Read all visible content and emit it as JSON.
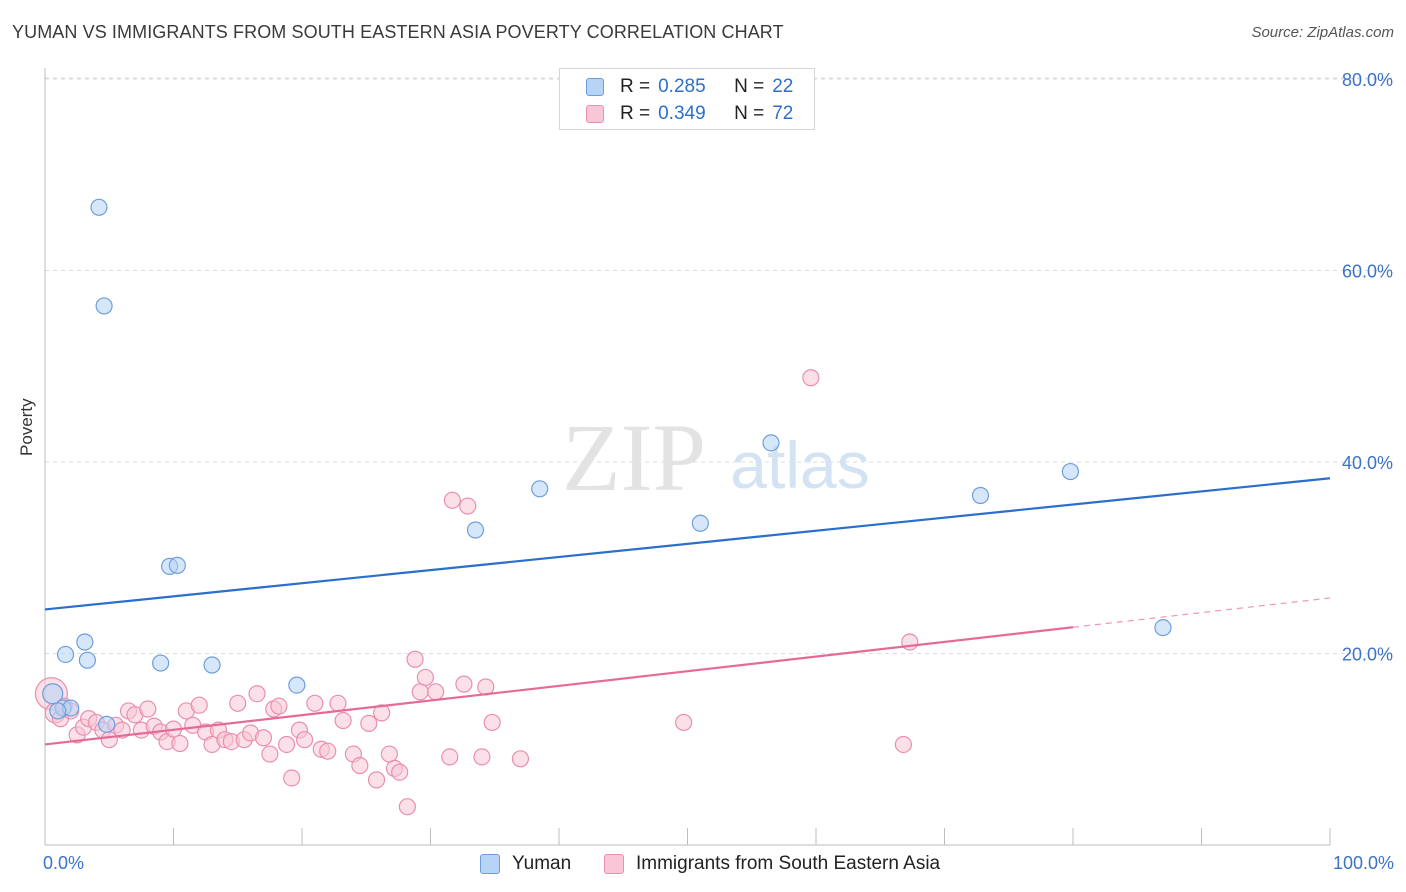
{
  "title": "YUMAN VS IMMIGRANTS FROM SOUTH EASTERN ASIA POVERTY CORRELATION CHART",
  "source": "Source: ZipAtlas.com",
  "watermark": {
    "zip": "ZIP",
    "atlas": "atlas"
  },
  "legend": {
    "r_label": "R =",
    "n_label": "N =",
    "rows": [
      {
        "r": "0.285",
        "n": "22"
      },
      {
        "r": "0.349",
        "n": "72"
      }
    ]
  },
  "colors": {
    "yuman_fill": "#b7d3f5",
    "yuman_stroke": "#6e9fdc",
    "yuman_line": "#2a6fcc",
    "sea_fill": "#f8c6d6",
    "sea_stroke": "#ea8fae",
    "sea_line": "#e56b95",
    "tick_label": "#3a73c8",
    "grid": "#dcdcdc"
  },
  "chart_data": {
    "type": "scatter",
    "title": "YUMAN VS IMMIGRANTS FROM SOUTH EASTERN ASIA POVERTY CORRELATION CHART",
    "xlabel": "",
    "ylabel": "Poverty",
    "xlim": [
      0,
      100
    ],
    "ylim": [
      0,
      80
    ],
    "x_tick_labels": [
      "0.0%",
      "100.0%"
    ],
    "y_ticks": [
      20,
      40,
      60,
      80
    ],
    "y_tick_labels": [
      "20.0%",
      "40.0%",
      "60.0%",
      "80.0%"
    ],
    "grid": true,
    "series": [
      {
        "name": "Yuman",
        "R": 0.285,
        "N": 22,
        "trend": {
          "x": [
            0,
            100
          ],
          "y": [
            24.6,
            38.3
          ],
          "dashed_from": null
        },
        "points": [
          [
            0.6,
            15.8
          ],
          [
            1.4,
            14.3
          ],
          [
            1.6,
            19.9
          ],
          [
            2.0,
            14.3
          ],
          [
            3.1,
            21.2
          ],
          [
            3.3,
            19.3
          ],
          [
            4.2,
            66.6
          ],
          [
            4.6,
            56.3
          ],
          [
            4.8,
            12.6
          ],
          [
            9.0,
            19.0
          ],
          [
            9.7,
            29.1
          ],
          [
            10.3,
            29.2
          ],
          [
            13.0,
            18.8
          ],
          [
            19.6,
            16.7
          ],
          [
            33.5,
            32.9
          ],
          [
            38.5,
            37.2
          ],
          [
            51.0,
            33.6
          ],
          [
            56.5,
            42.0
          ],
          [
            72.8,
            36.5
          ],
          [
            79.8,
            39.0
          ],
          [
            87.0,
            22.7
          ],
          [
            1.0,
            14.0
          ]
        ]
      },
      {
        "name": "Immigrants from South Eastern Asia",
        "R": 0.349,
        "N": 72,
        "trend": {
          "x": [
            0,
            100
          ],
          "y": [
            10.5,
            25.8
          ],
          "dashed_from": 80
        },
        "points": [
          [
            0.5,
            15.8
          ],
          [
            0.8,
            13.8
          ],
          [
            1.2,
            13.2
          ],
          [
            1.5,
            14.5
          ],
          [
            2.0,
            14.0
          ],
          [
            2.5,
            11.5
          ],
          [
            3.0,
            12.3
          ],
          [
            3.4,
            13.2
          ],
          [
            4.0,
            12.8
          ],
          [
            4.5,
            12.0
          ],
          [
            5.0,
            11.0
          ],
          [
            5.5,
            12.5
          ],
          [
            6.0,
            12.0
          ],
          [
            6.5,
            14.0
          ],
          [
            7.0,
            13.6
          ],
          [
            7.5,
            12.0
          ],
          [
            8.0,
            14.2
          ],
          [
            8.5,
            12.4
          ],
          [
            9.0,
            11.8
          ],
          [
            9.5,
            10.8
          ],
          [
            10.0,
            12.1
          ],
          [
            10.5,
            10.6
          ],
          [
            11.0,
            14.0
          ],
          [
            11.5,
            12.5
          ],
          [
            12.0,
            14.6
          ],
          [
            12.5,
            11.8
          ],
          [
            13.0,
            10.5
          ],
          [
            13.5,
            12.0
          ],
          [
            14.0,
            11.0
          ],
          [
            14.5,
            10.8
          ],
          [
            15.0,
            14.8
          ],
          [
            15.5,
            11.0
          ],
          [
            16.0,
            11.7
          ],
          [
            16.5,
            15.8
          ],
          [
            17.0,
            11.2
          ],
          [
            17.5,
            9.5
          ],
          [
            17.8,
            14.2
          ],
          [
            18.2,
            14.5
          ],
          [
            18.8,
            10.5
          ],
          [
            19.2,
            7.0
          ],
          [
            19.8,
            12.0
          ],
          [
            20.2,
            11.0
          ],
          [
            21.0,
            14.8
          ],
          [
            21.5,
            10.0
          ],
          [
            22.0,
            9.8
          ],
          [
            22.8,
            14.8
          ],
          [
            23.2,
            13.0
          ],
          [
            24.0,
            9.5
          ],
          [
            24.5,
            8.3
          ],
          [
            25.2,
            12.7
          ],
          [
            25.8,
            6.8
          ],
          [
            26.2,
            13.8
          ],
          [
            26.8,
            9.5
          ],
          [
            27.2,
            8.0
          ],
          [
            27.6,
            7.6
          ],
          [
            28.2,
            4.0
          ],
          [
            28.8,
            19.4
          ],
          [
            29.2,
            16.0
          ],
          [
            29.6,
            17.5
          ],
          [
            30.4,
            16.0
          ],
          [
            31.5,
            9.2
          ],
          [
            31.7,
            36.0
          ],
          [
            32.6,
            16.8
          ],
          [
            32.9,
            35.4
          ],
          [
            34.0,
            9.2
          ],
          [
            34.3,
            16.5
          ],
          [
            34.8,
            12.8
          ],
          [
            37.0,
            9.0
          ],
          [
            49.7,
            12.8
          ],
          [
            59.6,
            48.8
          ],
          [
            66.8,
            10.5
          ],
          [
            67.3,
            21.2
          ]
        ]
      }
    ]
  }
}
